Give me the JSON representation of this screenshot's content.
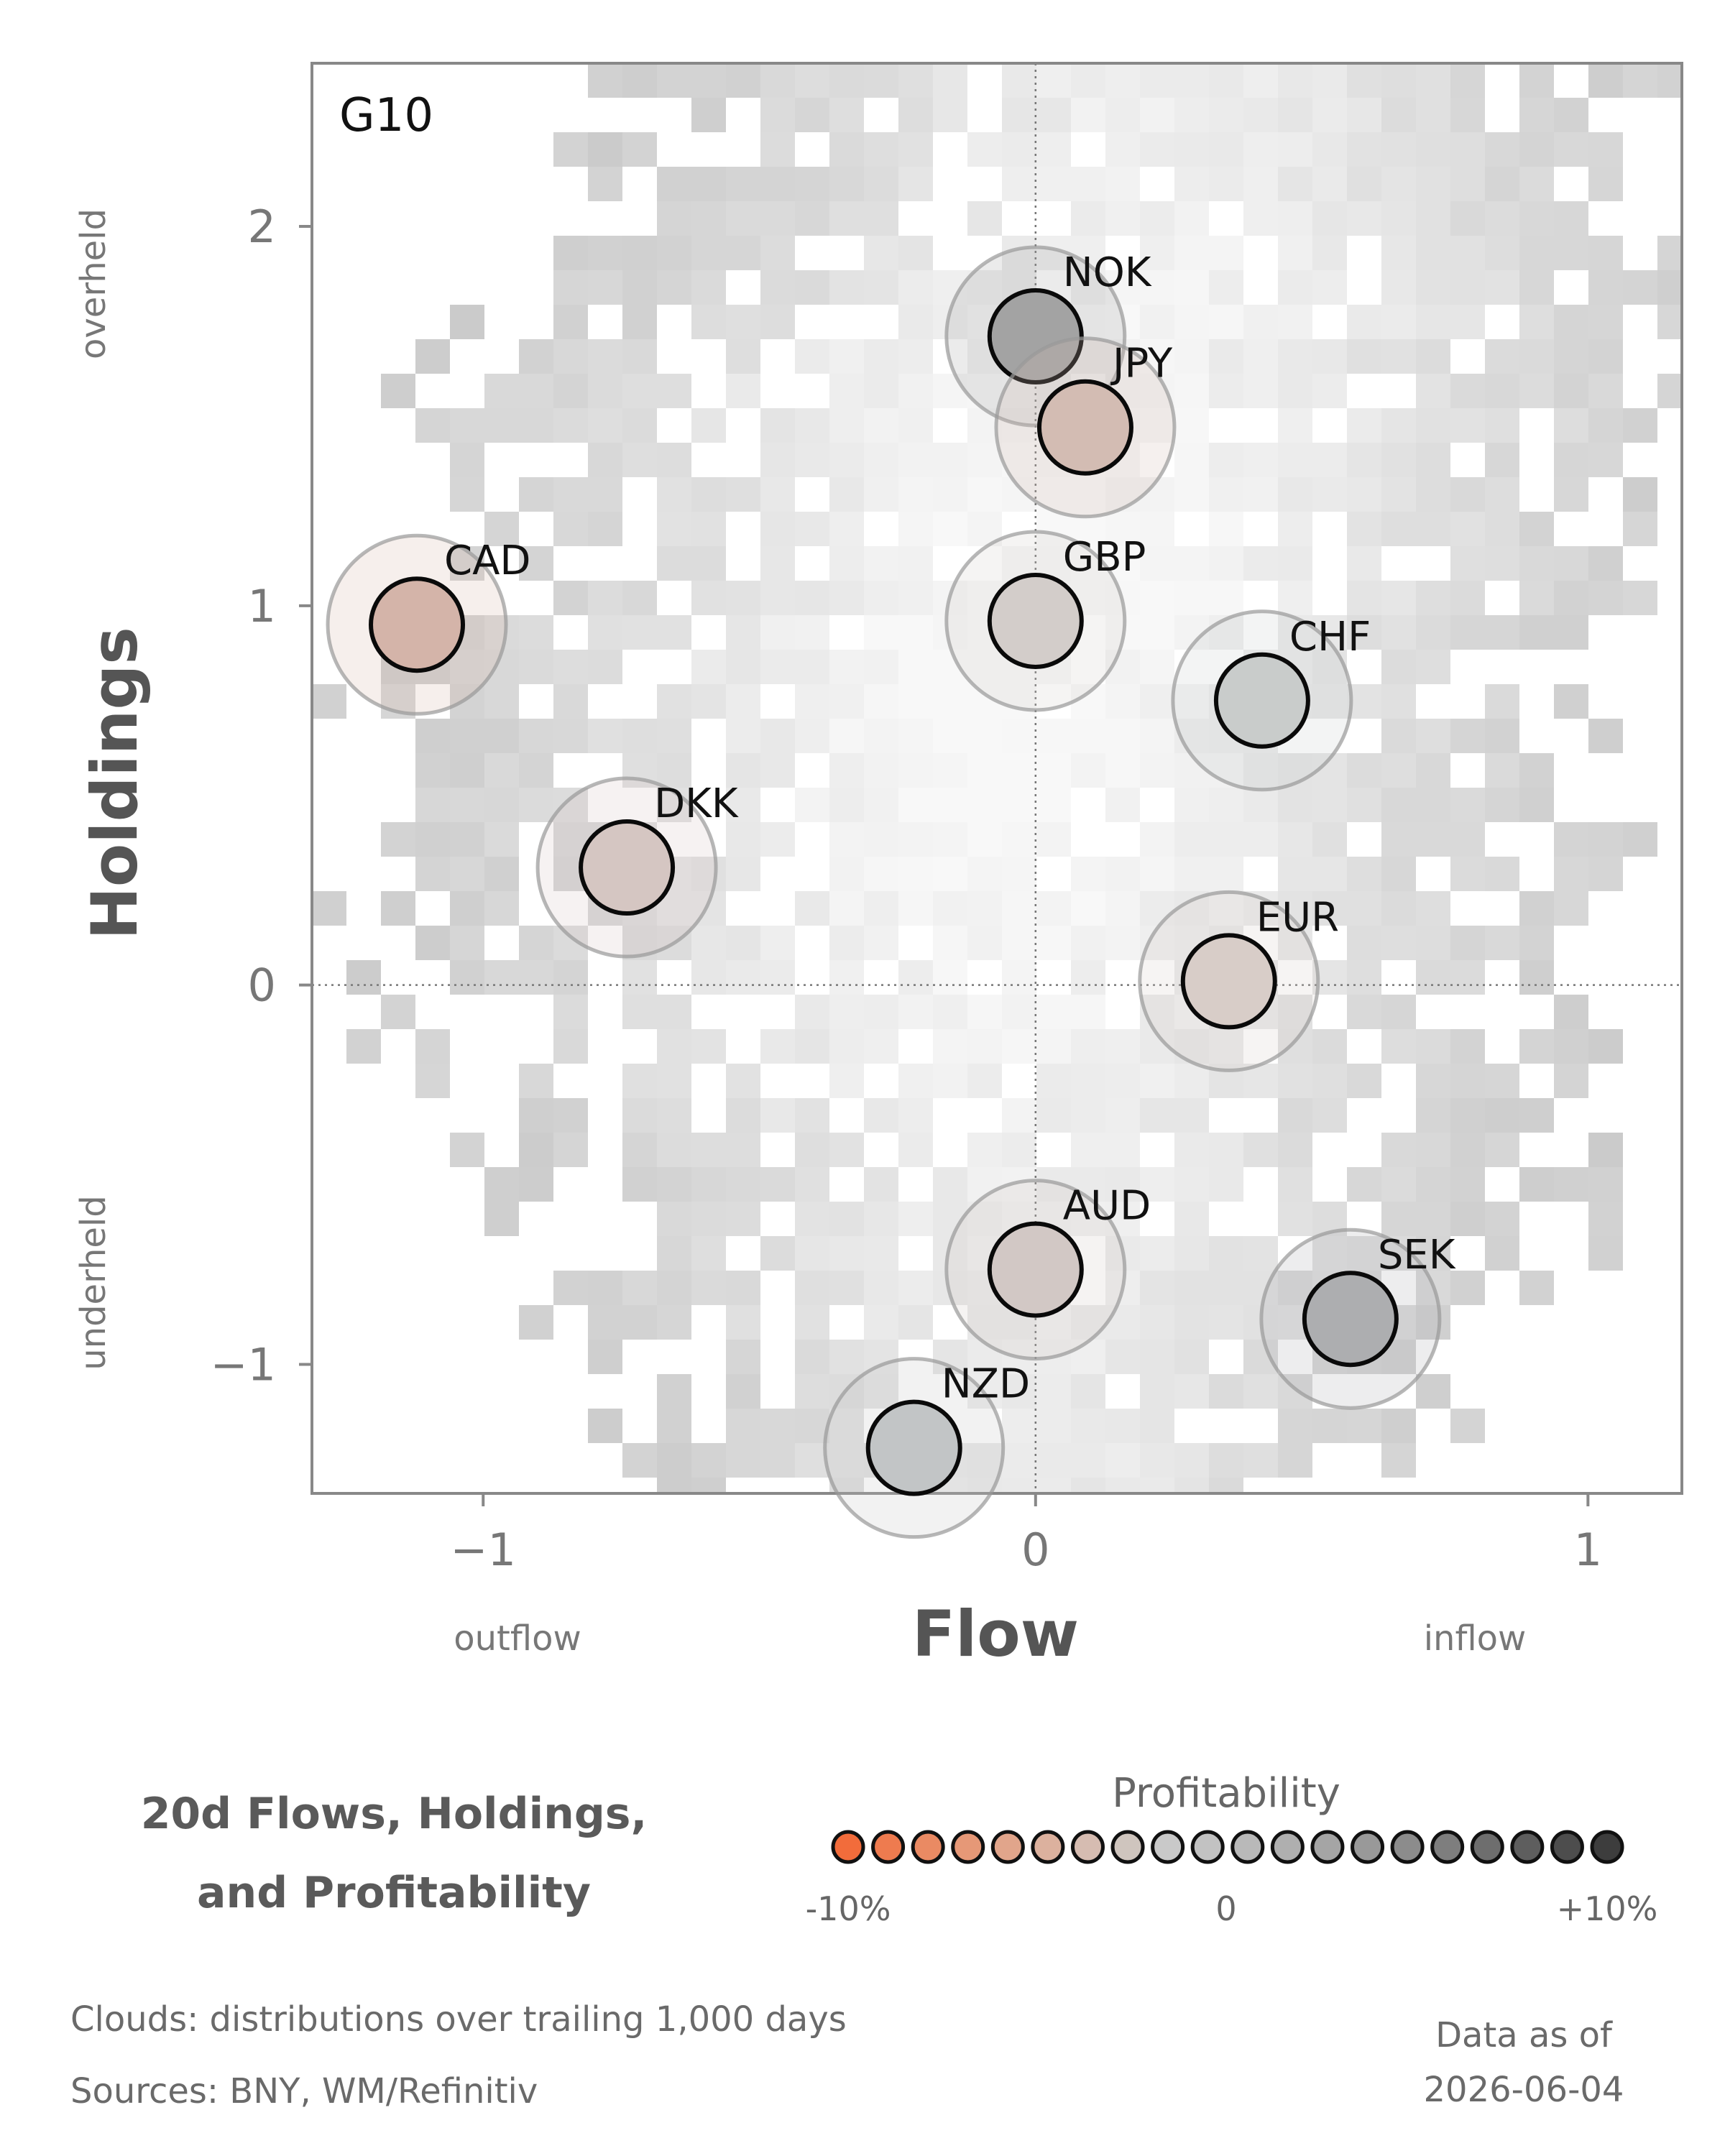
{
  "chart_data": {
    "type": "scatter",
    "panel_label": "G10",
    "xlabel": "Flow",
    "ylabel": "Holdings",
    "x_low_label": "outflow",
    "x_high_label": "inflow",
    "y_high_label": "overheld",
    "y_low_label": "underheld",
    "xlim": [
      -1.31,
      1.17
    ],
    "ylim": [
      -1.34,
      2.43
    ],
    "x_ticks": [
      {
        "value": -1,
        "label": "−1"
      },
      {
        "value": 0,
        "label": "0"
      },
      {
        "value": 1,
        "label": "1"
      }
    ],
    "y_ticks": [
      {
        "value": -1,
        "label": "−1"
      },
      {
        "value": 0,
        "label": "0"
      },
      {
        "value": 1,
        "label": "1"
      },
      {
        "value": 2,
        "label": "2"
      }
    ],
    "points": [
      {
        "label": "NOK",
        "flow": 0.0,
        "holdings": 1.71,
        "color": "#a3a3a3"
      },
      {
        "label": "JPY",
        "flow": 0.09,
        "holdings": 1.47,
        "color": "#d3bcb3"
      },
      {
        "label": "CAD",
        "flow": -1.12,
        "holdings": 0.95,
        "color": "#d4b4a9"
      },
      {
        "label": "GBP",
        "flow": 0.0,
        "holdings": 0.96,
        "color": "#d3cdca"
      },
      {
        "label": "CHF",
        "flow": 0.41,
        "holdings": 0.75,
        "color": "#c9cccb"
      },
      {
        "label": "DKK",
        "flow": -0.74,
        "holdings": 0.31,
        "color": "#d5c6c2"
      },
      {
        "label": "EUR",
        "flow": 0.35,
        "holdings": 0.01,
        "color": "#d8cdc8"
      },
      {
        "label": "AUD",
        "flow": 0.0,
        "holdings": -0.75,
        "color": "#d2c8c5"
      },
      {
        "label": "SEK",
        "flow": 0.57,
        "holdings": -0.88,
        "color": "#adaeb0"
      },
      {
        "label": "NZD",
        "flow": -0.22,
        "holdings": -1.22,
        "color": "#c2c5c6"
      }
    ],
    "background": "heatmap clouds",
    "grid": false,
    "legend": {
      "title": "Profitability",
      "min_label": "-10%",
      "mid_label": "0",
      "max_label": "+10%",
      "colors": [
        "#f26c3b",
        "#ee7b4f",
        "#ea8a63",
        "#e69877",
        "#e1a58b",
        "#dcb19e",
        "#d6bcb1",
        "#cfc5be",
        "#c9c9c9",
        "#c2c2c2",
        "#b9b9b9",
        "#afafaf",
        "#a5a5a5",
        "#999999",
        "#8c8c8c",
        "#7e7e7e",
        "#6e6e6e",
        "#5e5e5e",
        "#4d4d4d",
        "#3d3d3d"
      ]
    }
  },
  "caption": {
    "title_line1": "20d Flows, Holdings,",
    "title_line2": "and Profitability",
    "clouds_note": "Clouds:  distributions over trailing 1,000 days",
    "sources_note": "Sources:  BNY, WM/Refinitiv",
    "data_as_of_label": "Data as of",
    "data_as_of_date": "2026-06-04"
  }
}
